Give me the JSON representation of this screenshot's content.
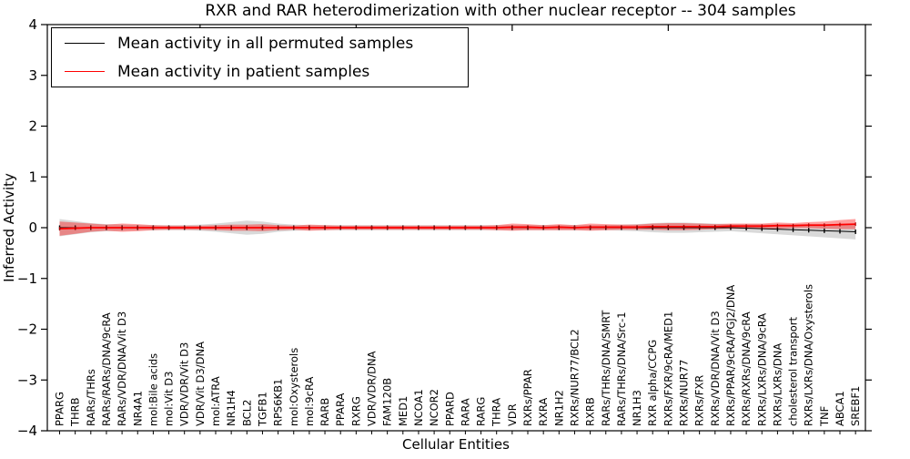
{
  "title": "RXR and RAR heterodimerization with other nuclear receptor -- 304 samples",
  "legend": {
    "items": [
      {
        "label": "Mean activity in all permuted samples",
        "color": "#000000"
      },
      {
        "label": "Mean activity in patient samples",
        "color": "#ff0000"
      }
    ]
  },
  "chart_data": {
    "type": "line",
    "title": "RXR and RAR heterodimerization with other nuclear receptor -- 304 samples",
    "xlabel": "Cellular Entities",
    "ylabel": "Inferred Activity",
    "ylim": [
      -4,
      4
    ],
    "yticks": [
      -4,
      -3,
      -2,
      -1,
      0,
      1,
      2,
      3,
      4
    ],
    "grid": false,
    "legend_position": "upper left",
    "major_tick_indices": [
      9,
      19,
      29,
      39,
      49
    ],
    "categories": [
      "PPARG",
      "THRB",
      "RARs/THRs",
      "RARs/RARs/DNA/9cRA",
      "RARs/VDR/DNA/Vit D3",
      "NR4A1",
      "mol:Bile acids",
      "mol:Vit D3",
      "VDR/VDR/Vit D3",
      "VDR/Vit D3/DNA",
      "mol:ATRA",
      "NR1H4",
      "BCL2",
      "TGFB1",
      "RPS6KB1",
      "mol:Oxysterols",
      "mol:9cRA",
      "RARB",
      "PPARA",
      "RXRG",
      "VDR/VDR/DNA",
      "FAM120B",
      "MED1",
      "NCOA1",
      "NCOR2",
      "PPARD",
      "RARA",
      "RARG",
      "THRA",
      "VDR",
      "RXRs/PPAR",
      "RXRA",
      "NR1H2",
      "RXRs/NUR77/BCL2",
      "RXRB",
      "RARs/THRs/DNA/SMRT",
      "RARs/THRs/DNA/Src-1",
      "NR1H3",
      "RXR alpha/CCPG",
      "RXRs/FXR/9cRA/MED1",
      "RXRs/NUR77",
      "RXRs/FXR",
      "RXRs/VDR/DNA/Vit D3",
      "RXRs/PPAR/9cRA/PGJ2/DNA",
      "RXRs/RXRs/DNA/9cRA",
      "RXRs/LXRs/DNA/9cRA",
      "RXRs/LXRs/DNA",
      "cholesterol transport",
      "RXRs/LXRs/DNA/Oxysterols",
      "TNF",
      "ABCA1",
      "SREBF1"
    ],
    "series": [
      {
        "name": "Mean activity in all permuted samples",
        "color": "#000000",
        "marker_color": "#000000",
        "band_color": "rgba(0,0,0,0.15)",
        "line_width": 1,
        "values": [
          0,
          0,
          0,
          0,
          0,
          0,
          0,
          0,
          0,
          0,
          0,
          0,
          0,
          0,
          0,
          0,
          0,
          0,
          0,
          0,
          0,
          0,
          0,
          0,
          0,
          0,
          0,
          0,
          0,
          0,
          0,
          0,
          0,
          0,
          0,
          0,
          0,
          0,
          0,
          0,
          0,
          0,
          0,
          0,
          -0.01,
          -0.02,
          -0.03,
          -0.04,
          -0.05,
          -0.06,
          -0.07,
          -0.08
        ],
        "band": [
          0.17,
          0.13,
          0.09,
          0.07,
          0.06,
          0.05,
          0.05,
          0.05,
          0.05,
          0.06,
          0.08,
          0.11,
          0.14,
          0.12,
          0.08,
          0.06,
          0.05,
          0.05,
          0.05,
          0.05,
          0.05,
          0.05,
          0.05,
          0.05,
          0.05,
          0.05,
          0.05,
          0.05,
          0.05,
          0.05,
          0.05,
          0.05,
          0.05,
          0.05,
          0.05,
          0.05,
          0.06,
          0.07,
          0.09,
          0.1,
          0.1,
          0.09,
          0.08,
          0.07,
          0.08,
          0.09,
          0.1,
          0.11,
          0.12,
          0.13,
          0.14,
          0.15
        ]
      },
      {
        "name": "Mean activity in patient samples",
        "color": "#ff0000",
        "marker_color": "#b00000",
        "band_color": "rgba(255,0,0,0.38)",
        "line_width": 1.8,
        "values": [
          -0.02,
          -0.01,
          0,
          0,
          0,
          0,
          0,
          0,
          0,
          0,
          0,
          0,
          0,
          0,
          0,
          0,
          0,
          0,
          0,
          0,
          0,
          0,
          0,
          0,
          0,
          0,
          0,
          0,
          0,
          0.01,
          0.01,
          0,
          0.01,
          0,
          0.01,
          0.01,
          0.01,
          0.01,
          0.02,
          0.02,
          0.02,
          0.02,
          0.02,
          0.03,
          0.03,
          0.03,
          0.04,
          0.04,
          0.05,
          0.05,
          0.06,
          0.07
        ],
        "band": [
          0.14,
          0.11,
          0.08,
          0.06,
          0.08,
          0.07,
          0.05,
          0.04,
          0.04,
          0.04,
          0.05,
          0.06,
          0.06,
          0.07,
          0.05,
          0.04,
          0.06,
          0.05,
          0.04,
          0.04,
          0.04,
          0.04,
          0.04,
          0.04,
          0.04,
          0.04,
          0.04,
          0.04,
          0.05,
          0.07,
          0.06,
          0.05,
          0.06,
          0.05,
          0.07,
          0.06,
          0.05,
          0.05,
          0.06,
          0.07,
          0.07,
          0.06,
          0.05,
          0.05,
          0.05,
          0.05,
          0.06,
          0.05,
          0.06,
          0.07,
          0.09,
          0.1
        ]
      }
    ]
  }
}
